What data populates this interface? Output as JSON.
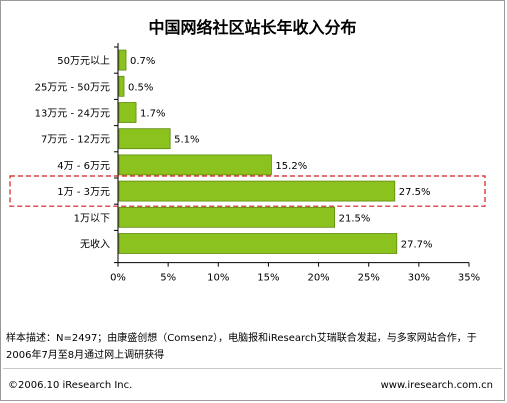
{
  "title": "中国网络社区站长年收入分布",
  "chart_data": {
    "type": "bar",
    "orientation": "horizontal",
    "categories": [
      "50万元以上",
      "25万元 - 50万元",
      "13万元 - 24万元",
      "7万元 - 12万元",
      "4万 - 6万元",
      "1万 - 3万元",
      "1万以下",
      "无收入"
    ],
    "values": [
      0.7,
      0.5,
      1.7,
      5.1,
      15.2,
      27.5,
      21.5,
      27.7
    ],
    "value_labels": [
      "0.7%",
      "0.5%",
      "1.7%",
      "5.1%",
      "15.2%",
      "27.5%",
      "21.5%",
      "27.7%"
    ],
    "x_ticks": [
      "0%",
      "5%",
      "10%",
      "15%",
      "20%",
      "25%",
      "30%",
      "35%"
    ],
    "xlim": [
      0,
      35
    ],
    "highlighted_category": "1万 - 3万元",
    "grid": false,
    "colors": {
      "bar": "#8cc21e",
      "bar_border": "#5f8a0c",
      "highlight_box": "#d11c1c"
    }
  },
  "note": "样本描述：N=2497；由康盛创想（Comsenz），电脑报和iResearch艾瑞联合发起，与多家网站合作，于2006年7月至8月通过网上调研获得",
  "footer": {
    "copyright": "©2006.10 iResearch Inc.",
    "website": "www.iresearch.com.cn"
  }
}
